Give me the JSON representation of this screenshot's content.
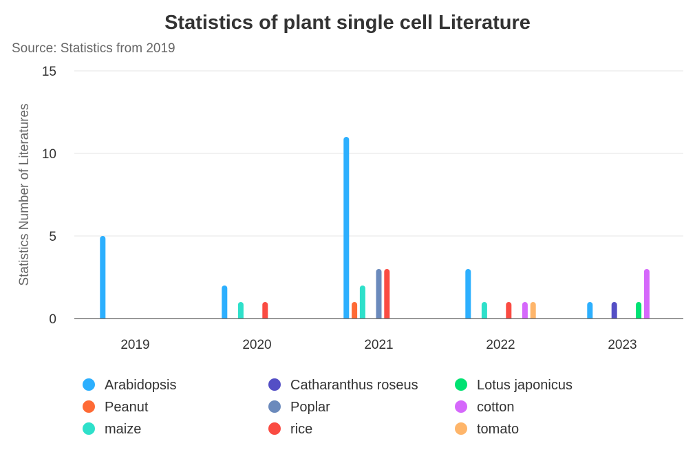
{
  "chart_data": {
    "type": "bar",
    "title": "Statistics of plant single cell Literature",
    "subtitle": "Source: Statistics from 2019",
    "xlabel": "",
    "ylabel": "Statistics Number of Literatures",
    "ylim": [
      0,
      15
    ],
    "yticks": [
      0,
      5,
      10,
      15
    ],
    "grid": true,
    "legend_position": "bottom",
    "categories": [
      "2019",
      "2020",
      "2021",
      "2022",
      "2023"
    ],
    "series": [
      {
        "name": "Arabidopsis",
        "color": "#2CAFFE",
        "values": [
          5,
          2,
          11,
          3,
          1
        ]
      },
      {
        "name": "Peanut",
        "color": "#FE6A35",
        "values": [
          0,
          0,
          1,
          0,
          0
        ]
      },
      {
        "name": "maize",
        "color": "#2EE0CA",
        "values": [
          0,
          1,
          2,
          1,
          0
        ]
      },
      {
        "name": "Catharanthus roseus",
        "color": "#544FC5",
        "values": [
          0,
          0,
          0,
          0,
          1
        ]
      },
      {
        "name": "Poplar",
        "color": "#6B8ABC",
        "values": [
          0,
          0,
          3,
          0,
          0
        ]
      },
      {
        "name": "rice",
        "color": "#FA4B42",
        "values": [
          0,
          1,
          3,
          1,
          0
        ]
      },
      {
        "name": "Lotus japonicus",
        "color": "#00E272",
        "values": [
          0,
          0,
          0,
          0,
          1
        ]
      },
      {
        "name": "cotton",
        "color": "#D568FB",
        "values": [
          0,
          0,
          0,
          1,
          3
        ]
      },
      {
        "name": "tomato",
        "color": "#FEB56A",
        "values": [
          0,
          0,
          0,
          1,
          0
        ]
      }
    ],
    "legend_order": [
      "Arabidopsis",
      "Catharanthus roseus",
      "Lotus japonicus",
      "Peanut",
      "Poplar",
      "cotton",
      "maize",
      "rice",
      "tomato"
    ]
  }
}
